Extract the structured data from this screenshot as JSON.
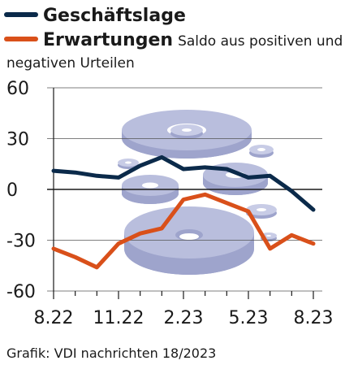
{
  "legend": {
    "series1": "Geschäftslage",
    "series2": "Erwartungen",
    "note_line1": "Saldo aus positiven und",
    "note_line2": "negativen Urteilen"
  },
  "source": "Grafik: VDI nachrichten 18/2023",
  "colors": {
    "geschaeftslage": "#0b2a4a",
    "erwartungen": "#d9501a",
    "gridline": "#1a1a1a",
    "decoration": "#b7bcd9"
  },
  "chart_data": {
    "type": "line",
    "x": [
      "8.22",
      "9.22",
      "10.22",
      "11.22",
      "12.22",
      "1.23",
      "2.23",
      "3.23",
      "4.23",
      "5.23",
      "6.23",
      "7.23",
      "8.23"
    ],
    "x_tick_labels": [
      "8.22",
      "11.22",
      "2.23",
      "5.23",
      "8.23"
    ],
    "y_tick_labels": [
      "60",
      "30",
      "0",
      "-30",
      "-60"
    ],
    "ylim": [
      -60,
      60
    ],
    "grid": "horizontal",
    "legend_position": "top-left",
    "series": [
      {
        "name": "Geschäftslage",
        "color": "#0b2a4a",
        "values": [
          11,
          10,
          8,
          7,
          14,
          19,
          12,
          13,
          12,
          7,
          8,
          -1,
          -12
        ]
      },
      {
        "name": "Erwartungen",
        "color": "#d9501a",
        "values": [
          -35,
          -40,
          -46,
          -32,
          -26,
          -23,
          -6,
          -3,
          -8,
          -13,
          -35,
          -27,
          -32
        ]
      }
    ]
  }
}
